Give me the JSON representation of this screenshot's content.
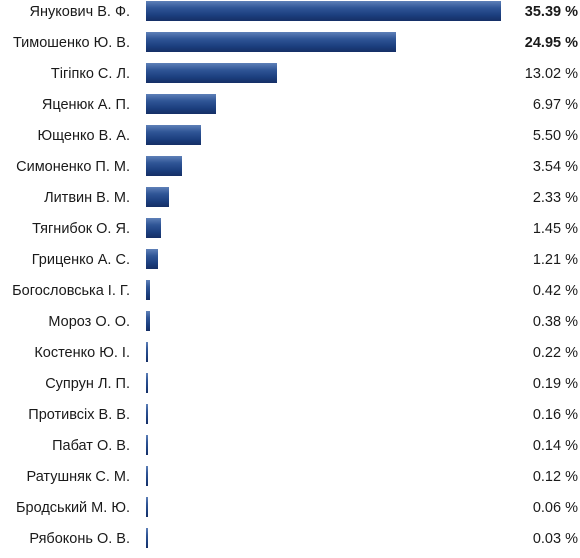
{
  "chart_data": {
    "type": "bar",
    "orientation": "horizontal",
    "unit": "%",
    "categories": [
      "Янукович В. Ф.",
      "Тимошенко Ю. В.",
      "Тігіпко С. Л.",
      "Яценюк А. П.",
      "Ющенко В. А.",
      "Симоненко П. М.",
      "Литвин В. М.",
      "Тягнибок О. Я.",
      "Гриценко А. С.",
      "Богословська І. Г.",
      "Мороз О. О.",
      "Костенко Ю. І.",
      "Супрун Л. П.",
      "Противсіх В. В.",
      "Пабат О. В.",
      "Ратушняк С. М.",
      "Бродський М. Ю.",
      "Рябоконь О. В."
    ],
    "values": [
      35.39,
      24.95,
      13.02,
      6.97,
      5.5,
      3.54,
      2.33,
      1.45,
      1.21,
      0.42,
      0.38,
      0.22,
      0.19,
      0.16,
      0.14,
      0.12,
      0.06,
      0.03
    ],
    "value_labels": [
      "35.39 %",
      "24.95 %",
      "13.02 %",
      "6.97 %",
      "5.50 %",
      "3.54 %",
      "2.33 %",
      "1.45 %",
      "1.21 %",
      "0.42 %",
      "0.38 %",
      "0.22 %",
      "0.19 %",
      "0.16 %",
      "0.14 %",
      "0.12 %",
      "0.06 %",
      "0.03 %"
    ],
    "bold_labels": [
      true,
      true,
      false,
      false,
      false,
      false,
      false,
      false,
      false,
      false,
      false,
      false,
      false,
      false,
      false,
      false,
      false,
      false
    ],
    "bar_color": "#1c3f7f",
    "title": "",
    "xlabel": "",
    "ylabel": "",
    "xlim": [
      0,
      35.39
    ],
    "grid": false,
    "legend": "none"
  }
}
